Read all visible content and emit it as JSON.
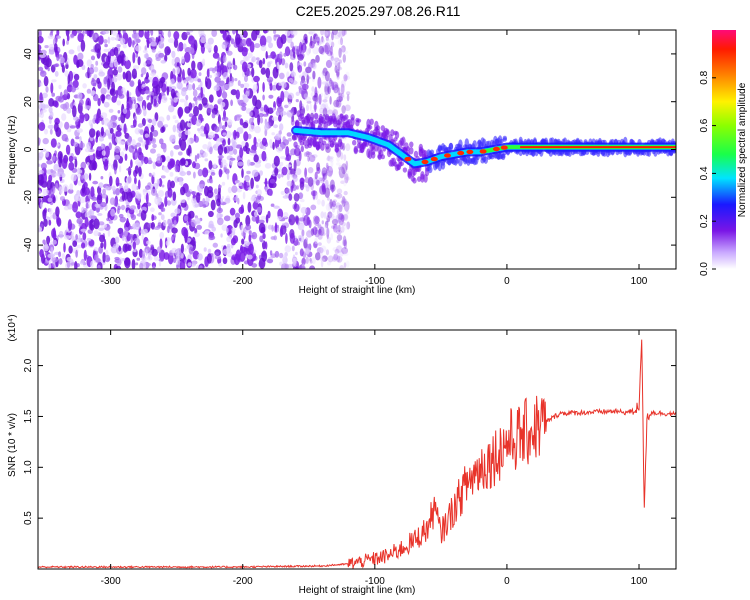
{
  "title": "C2E5.2025.297.08.26.R11",
  "colors": {
    "snr_line": "#e8332a",
    "frame": "#000000",
    "background": "#ffffff"
  },
  "chart_data": [
    {
      "type": "heatmap",
      "xlabel": "Height of straight line (km)",
      "ylabel": "Frequency (Hz)",
      "xlim": [
        -355,
        128
      ],
      "ylim": [
        -50,
        50
      ],
      "xticks": [
        -300,
        -200,
        -100,
        0,
        100
      ],
      "yticks": [
        -40,
        -20,
        0,
        20,
        40
      ],
      "noise_region_x": [
        -355,
        -120
      ],
      "signal_ridge": {
        "x": [
          -160,
          -140,
          -120,
          -105,
          -90,
          -80,
          -70,
          -60,
          -50,
          -40,
          -30,
          -20,
          -10,
          0,
          20,
          50,
          80,
          100,
          128
        ],
        "frequency": [
          8,
          7,
          7,
          5,
          2,
          -2,
          -6,
          -5,
          -3,
          -2,
          -1,
          -1,
          0,
          1,
          1,
          1,
          1,
          1,
          1
        ]
      },
      "colorbar": {
        "label": "Normalized spectral amplitude",
        "range": [
          0.0,
          1.0
        ],
        "ticks": [
          0.0,
          0.2,
          0.4,
          0.6,
          0.8
        ],
        "tick_labels": [
          "0.0",
          "0.2",
          "0.4",
          "0.6",
          "0.8"
        ]
      }
    },
    {
      "type": "line",
      "xlabel": "Height of straight line (km)",
      "ylabel": "SNR (10 * v/v)",
      "scale_label": "(x10⁴)",
      "xlim": [
        -355,
        128
      ],
      "ylim": [
        0,
        2.35
      ],
      "xticks": [
        -300,
        -200,
        -100,
        0,
        100
      ],
      "yticks": [
        0.5,
        1.0,
        1.5,
        2.0
      ],
      "ytick_labels": [
        "0.5",
        "1.0",
        "1.5",
        "2.0"
      ],
      "series": [
        {
          "name": "SNR",
          "x": [
            -355,
            -200,
            -140,
            -120,
            -100,
            -90,
            -80,
            -70,
            -60,
            -55,
            -50,
            -40,
            -30,
            -20,
            -10,
            0,
            10,
            20,
            30,
            40,
            60,
            80,
            90,
            95,
            100,
            102,
            104,
            106,
            110,
            128
          ],
          "y": [
            0.02,
            0.02,
            0.03,
            0.05,
            0.1,
            0.13,
            0.2,
            0.28,
            0.4,
            0.6,
            0.35,
            0.6,
            0.85,
            1.0,
            1.1,
            1.25,
            1.3,
            1.38,
            1.45,
            1.53,
            1.54,
            1.55,
            1.54,
            1.55,
            1.6,
            2.3,
            0.55,
            1.5,
            1.54,
            1.52
          ]
        }
      ]
    }
  ]
}
